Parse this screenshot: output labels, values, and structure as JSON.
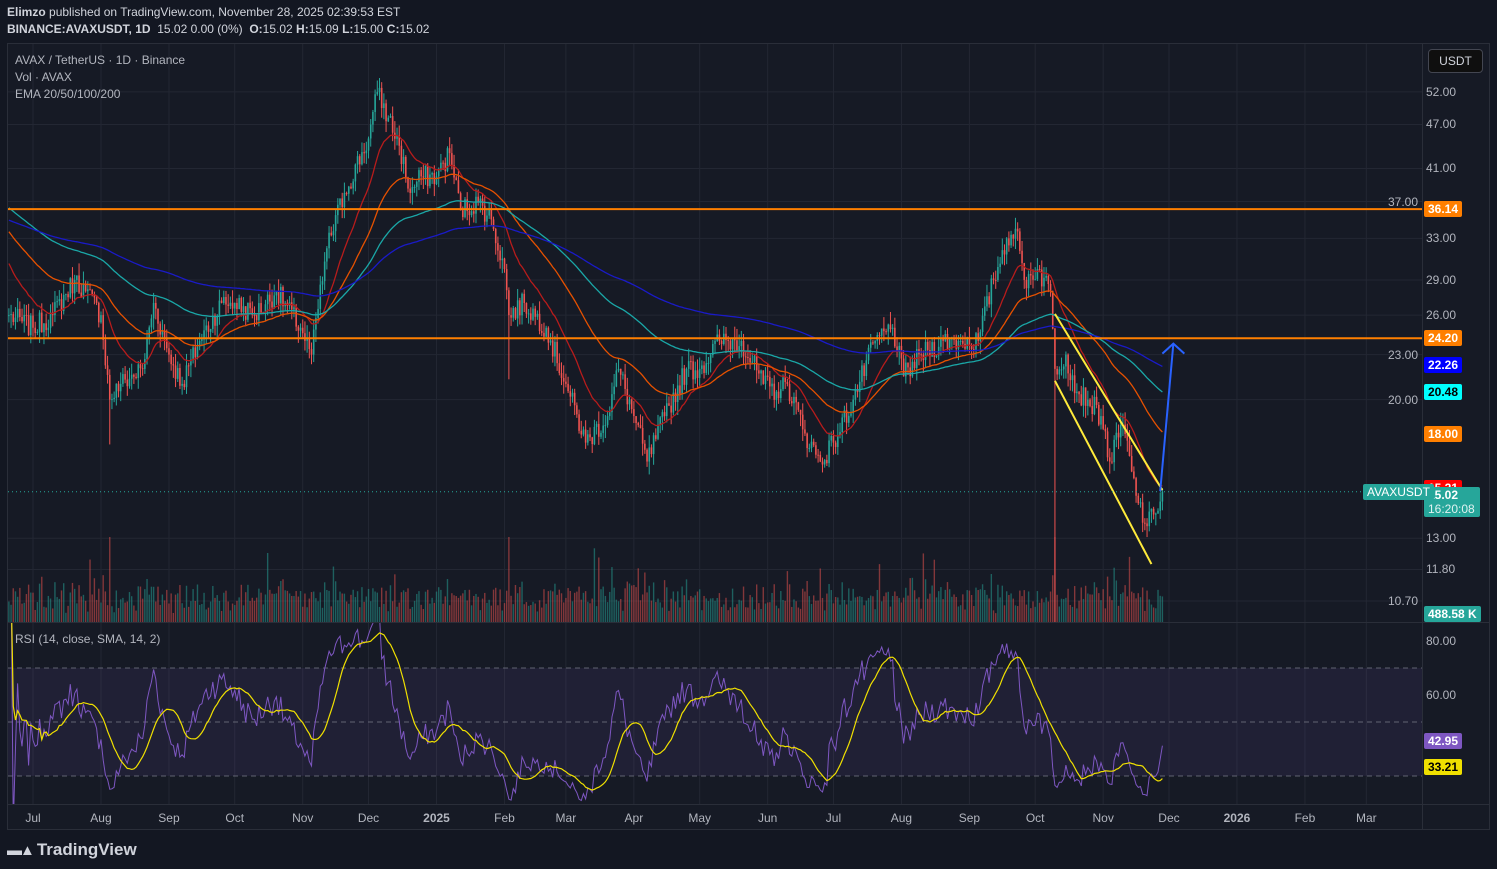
{
  "header": {
    "publisher": "Elimzo",
    "published_text": "published on TradingView.com, November 28, 2025 02:39:53 EST",
    "symbol": "BINANCE:AVAXUSDT, 1D",
    "change": "15.02 0.00 (0%)",
    "o_label": "O:",
    "o": "15.02",
    "h_label": "H:",
    "h": "15.09",
    "l_label": "L:",
    "l": "15.00",
    "c_label": "C:",
    "c": "15.02"
  },
  "legend": {
    "title": "AVAX / TetherUS · 1D · Binance",
    "volume": "Vol · AVAX",
    "ema": "EMA 20/50/100/200",
    "rsi": "RSI (14, close, SMA, 14, 2)"
  },
  "currency_button": "USDT",
  "logo": "TradingView",
  "colors": {
    "up": "#26a69a",
    "down": "#ef5350",
    "ema20": "#b71c1c",
    "ema50": "#e65100",
    "ema100": "#1aa7a7",
    "ema200": "#1a1ac8",
    "level": "#ff7f00",
    "channel": "#ffeb3b",
    "arrow": "#2962ff",
    "rsi": "#7e57c2",
    "rsi_sma": "#f0e000"
  },
  "chart_data": {
    "type": "candlestick",
    "symbol": "AVAXUSDT",
    "interval": "1D",
    "yscale": "log",
    "price_ticks": [
      "52.00",
      "47.00",
      "41.00",
      "37.00",
      "33.00",
      "29.00",
      "26.00",
      "23.00",
      "20.00",
      "13.00",
      "11.80",
      "10.70"
    ],
    "time_ticks": [
      {
        "label": "Jul",
        "date": "2024-07-01"
      },
      {
        "label": "Aug",
        "date": "2024-08-01"
      },
      {
        "label": "Sep",
        "date": "2024-09-01"
      },
      {
        "label": "Oct",
        "date": "2024-10-01"
      },
      {
        "label": "Nov",
        "date": "2024-11-01"
      },
      {
        "label": "Dec",
        "date": "2024-12-01"
      },
      {
        "label": "2025",
        "date": "2025-01-01"
      },
      {
        "label": "Feb",
        "date": "2025-02-01"
      },
      {
        "label": "Mar",
        "date": "2025-03-01"
      },
      {
        "label": "Apr",
        "date": "2025-04-01"
      },
      {
        "label": "May",
        "date": "2025-05-01"
      },
      {
        "label": "Jun",
        "date": "2025-06-01"
      },
      {
        "label": "Jul",
        "date": "2025-07-01"
      },
      {
        "label": "Aug",
        "date": "2025-08-01"
      },
      {
        "label": "Sep",
        "date": "2025-09-01"
      },
      {
        "label": "Oct",
        "date": "2025-10-01"
      },
      {
        "label": "Nov",
        "date": "2025-11-01"
      },
      {
        "label": "Dec",
        "date": "2025-12-01"
      },
      {
        "label": "2026",
        "date": "2026-01-01"
      },
      {
        "label": "Feb",
        "date": "2026-02-01"
      },
      {
        "label": "Mar",
        "date": "2026-03-01"
      }
    ],
    "closes": [
      {
        "date": "2024-06-20",
        "close": 26
      },
      {
        "date": "2024-07-01",
        "close": 25
      },
      {
        "date": "2024-07-10",
        "close": 26
      },
      {
        "date": "2024-07-20",
        "close": 29
      },
      {
        "date": "2024-07-25",
        "close": 28
      },
      {
        "date": "2024-08-01",
        "close": 26
      },
      {
        "date": "2024-08-05",
        "close": 20,
        "low": 17.4
      },
      {
        "date": "2024-08-10",
        "close": 21
      },
      {
        "date": "2024-08-20",
        "close": 22
      },
      {
        "date": "2024-08-25",
        "close": 27
      },
      {
        "date": "2024-09-01",
        "close": 23
      },
      {
        "date": "2024-09-07",
        "close": 21
      },
      {
        "date": "2024-09-15",
        "close": 24
      },
      {
        "date": "2024-09-25",
        "close": 27
      },
      {
        "date": "2024-10-01",
        "close": 27
      },
      {
        "date": "2024-10-10",
        "close": 26
      },
      {
        "date": "2024-10-20",
        "close": 28
      },
      {
        "date": "2024-10-31",
        "close": 25
      },
      {
        "date": "2024-11-05",
        "close": 23
      },
      {
        "date": "2024-11-12",
        "close": 32
      },
      {
        "date": "2024-11-20",
        "close": 38
      },
      {
        "date": "2024-12-01",
        "close": 45
      },
      {
        "date": "2024-12-05",
        "close": 52
      },
      {
        "date": "2024-12-10",
        "close": 48
      },
      {
        "date": "2024-12-15",
        "close": 44
      },
      {
        "date": "2024-12-20",
        "close": 38
      },
      {
        "date": "2024-12-25",
        "close": 40
      },
      {
        "date": "2025-01-01",
        "close": 40
      },
      {
        "date": "2025-01-07",
        "close": 43
      },
      {
        "date": "2025-01-12",
        "close": 36
      },
      {
        "date": "2025-01-20",
        "close": 37
      },
      {
        "date": "2025-01-26",
        "close": 35
      },
      {
        "date": "2025-02-01",
        "close": 30
      },
      {
        "date": "2025-02-03",
        "close": 26,
        "low": 21.3
      },
      {
        "date": "2025-02-10",
        "close": 27
      },
      {
        "date": "2025-02-20",
        "close": 25
      },
      {
        "date": "2025-03-01",
        "close": 21
      },
      {
        "date": "2025-03-10",
        "close": 17.5
      },
      {
        "date": "2025-03-20",
        "close": 19
      },
      {
        "date": "2025-03-25",
        "close": 22
      },
      {
        "date": "2025-04-01",
        "close": 19
      },
      {
        "date": "2025-04-07",
        "close": 16.5
      },
      {
        "date": "2025-04-15",
        "close": 19
      },
      {
        "date": "2025-04-25",
        "close": 22
      },
      {
        "date": "2025-05-01",
        "close": 22
      },
      {
        "date": "2025-05-10",
        "close": 24
      },
      {
        "date": "2025-05-20",
        "close": 24
      },
      {
        "date": "2025-05-30",
        "close": 21
      },
      {
        "date": "2025-06-05",
        "close": 20.5
      },
      {
        "date": "2025-06-10",
        "close": 21
      },
      {
        "date": "2025-06-18",
        "close": 18
      },
      {
        "date": "2025-06-25",
        "close": 16.5
      },
      {
        "date": "2025-07-01",
        "close": 17.5
      },
      {
        "date": "2025-07-10",
        "close": 20
      },
      {
        "date": "2025-07-20",
        "close": 24
      },
      {
        "date": "2025-07-28",
        "close": 25
      },
      {
        "date": "2025-08-02",
        "close": 21.5
      },
      {
        "date": "2025-08-10",
        "close": 23
      },
      {
        "date": "2025-08-20",
        "close": 24
      },
      {
        "date": "2025-08-28",
        "close": 24
      },
      {
        "date": "2025-09-05",
        "close": 24
      },
      {
        "date": "2025-09-12",
        "close": 29
      },
      {
        "date": "2025-09-18",
        "close": 33
      },
      {
        "date": "2025-09-22",
        "close": 34
      },
      {
        "date": "2025-09-26",
        "close": 29
      },
      {
        "date": "2025-10-02",
        "close": 30
      },
      {
        "date": "2025-10-08",
        "close": 28
      },
      {
        "date": "2025-10-10",
        "close": 22,
        "low": 10
      },
      {
        "date": "2025-10-15",
        "close": 23
      },
      {
        "date": "2025-10-20",
        "close": 20.5
      },
      {
        "date": "2025-10-25",
        "close": 20
      },
      {
        "date": "2025-10-31",
        "close": 19
      },
      {
        "date": "2025-11-04",
        "close": 16.5
      },
      {
        "date": "2025-11-10",
        "close": 18.5
      },
      {
        "date": "2025-11-14",
        "close": 16
      },
      {
        "date": "2025-11-17",
        "close": 14.5
      },
      {
        "date": "2025-11-21",
        "close": 13.5
      },
      {
        "date": "2025-11-24",
        "close": 14
      },
      {
        "date": "2025-11-28",
        "close": 15.02
      }
    ],
    "levels": [
      {
        "price": 36.14,
        "label": "36.14"
      },
      {
        "price": 24.2,
        "label": "24.20"
      }
    ],
    "ema_last": [
      {
        "name": "EMA 200",
        "value": "22.26",
        "bg": "#0000ff",
        "fg": "#ffffff",
        "price": 22.26
      },
      {
        "name": "EMA 100",
        "value": "20.48",
        "bg": "#00ffff",
        "fg": "#000000",
        "price": 20.48
      },
      {
        "name": "EMA 50",
        "value": "18.00",
        "bg": "#ff7f00",
        "fg": "#ffffff",
        "price": 18.0
      },
      {
        "name": "EMA 20",
        "value": "15.21",
        "bg": "#ff0000",
        "fg": "#ffffff",
        "price": 15.21
      }
    ],
    "last": {
      "symbol": "AVAXUSDT",
      "price": "15.02",
      "countdown": "16:20:08",
      "volume": "488.58 K"
    },
    "channel": {
      "upper": [
        {
          "date": "2025-10-10",
          "price": 26.1
        },
        {
          "date": "2025-11-28",
          "price": 15.1
        }
      ],
      "lower": [
        {
          "date": "2025-10-10",
          "price": 21.2
        },
        {
          "date": "2025-11-23",
          "price": 12.0
        }
      ]
    },
    "arrow": {
      "from": {
        "date": "2025-11-27",
        "price": 15.05
      },
      "to": {
        "date": "2025-12-03",
        "price": 23.8
      }
    },
    "rsi": {
      "ticks": [
        "80.00",
        "60.00"
      ],
      "band": [
        30,
        70
      ],
      "last_rsi": "42.95",
      "last_sma": "33.21"
    }
  }
}
